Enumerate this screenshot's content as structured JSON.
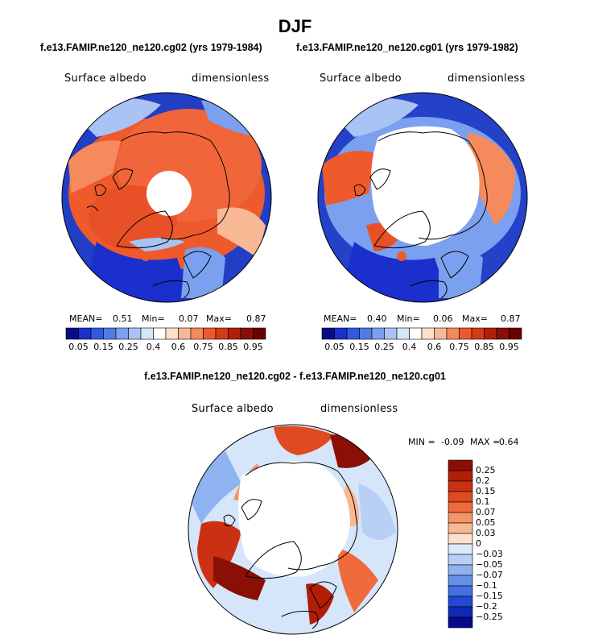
{
  "figure": {
    "title": "DJF",
    "subtitle_left": "f.e13.FAMIP.ne120_ne120.cg02 (yrs 1979-1984)",
    "subtitle_right": "f.e13.FAMIP.ne120_ne120.cg01 (yrs 1979-1982)",
    "diff_title": "f.e13.FAMIP.ne120_ne120.cg02 - f.e13.FAMIP.ne120_ne120.cg01"
  },
  "chart_data": [
    {
      "type": "heatmap",
      "projection": "north-polar-stereographic",
      "panel": "top-left",
      "variable": "Surface albedo",
      "units": "dimensionless",
      "stats": {
        "mean_label": "MEAN=",
        "mean": "0.51",
        "min_label": "Min=",
        "min": "0.07",
        "max_label": "Max=",
        "max": "0.87"
      },
      "colorbar": {
        "orientation": "horizontal",
        "levels": [
          0.05,
          0.15,
          0.25,
          0.4,
          0.6,
          0.75,
          0.85,
          0.95
        ],
        "tick_labels": [
          "0.05",
          "0.15",
          "0.25",
          "0.4",
          "0.6",
          "0.75",
          "0.85",
          "0.95"
        ],
        "colors": [
          "#0b0b8a",
          "#1a2fcc",
          "#2f5be0",
          "#4d7ee8",
          "#7ba0ef",
          "#a8c3f4",
          "#d6e6fa",
          "#ffffff",
          "#fde0cc",
          "#f9b894",
          "#f58a5c",
          "#ee5a2c",
          "#d83a12",
          "#b11e08",
          "#8a0f05",
          "#6a0000"
        ]
      }
    },
    {
      "type": "heatmap",
      "projection": "north-polar-stereographic",
      "panel": "top-right",
      "variable": "Surface albedo",
      "units": "dimensionless",
      "stats": {
        "mean_label": "MEAN=",
        "mean": "0.40",
        "min_label": "Min=",
        "min": "0.06",
        "max_label": "Max=",
        "max": "0.87"
      },
      "colorbar": {
        "orientation": "horizontal",
        "levels": [
          0.05,
          0.15,
          0.25,
          0.4,
          0.6,
          0.75,
          0.85,
          0.95
        ],
        "tick_labels": [
          "0.05",
          "0.15",
          "0.25",
          "0.4",
          "0.6",
          "0.75",
          "0.85",
          "0.95"
        ],
        "colors": [
          "#0b0b8a",
          "#1a2fcc",
          "#2f5be0",
          "#4d7ee8",
          "#7ba0ef",
          "#a8c3f4",
          "#d6e6fa",
          "#ffffff",
          "#fde0cc",
          "#f9b894",
          "#f58a5c",
          "#ee5a2c",
          "#d83a12",
          "#b11e08",
          "#8a0f05",
          "#6a0000"
        ]
      }
    },
    {
      "type": "heatmap",
      "projection": "north-polar-stereographic",
      "panel": "bottom-difference",
      "variable": "Surface albedo",
      "units": "dimensionless",
      "stats": {
        "min_label": "MIN =",
        "min": "-0.09",
        "max_label": "MAX =",
        "max": "0.64"
      },
      "colorbar": {
        "orientation": "vertical",
        "levels": [
          0.25,
          0.2,
          0.15,
          0.1,
          0.07,
          0.05,
          0.03,
          0,
          -0.03,
          -0.05,
          -0.07,
          -0.1,
          -0.15,
          -0.2,
          -0.25
        ],
        "tick_labels": [
          "0.25",
          "0.2",
          "0.15",
          "0.1",
          "0.07",
          "0.05",
          "0.03",
          "0",
          "−0.03",
          "−0.05",
          "−0.07",
          "−0.1",
          "−0.15",
          "−0.2",
          "−0.25"
        ],
        "colors": [
          "#8a0f05",
          "#b11e08",
          "#cc3012",
          "#e04a22",
          "#ef6a3c",
          "#f5946a",
          "#f9b894",
          "#fde0cc",
          "#dde9fb",
          "#b8cff6",
          "#8fb2f0",
          "#6990e8",
          "#4470e0",
          "#2448d4",
          "#1128b4",
          "#08088a"
        ]
      }
    }
  ]
}
